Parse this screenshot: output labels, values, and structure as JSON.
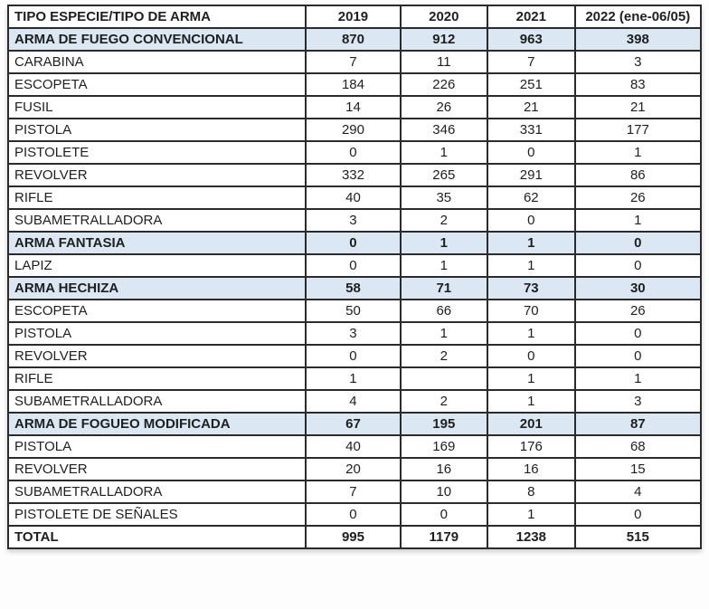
{
  "table": {
    "columns": [
      "TIPO ESPECIE/TIPO DE ARMA",
      "2019",
      "2020",
      "2021",
      "2022 (ene-06/05)"
    ],
    "rows": [
      {
        "type": "section",
        "label": "ARMA DE FUEGO CONVENCIONAL",
        "values": [
          "870",
          "912",
          "963",
          "398"
        ]
      },
      {
        "type": "item",
        "label": "CARABINA",
        "values": [
          "7",
          "11",
          "7",
          "3"
        ]
      },
      {
        "type": "item",
        "label": "ESCOPETA",
        "values": [
          "184",
          "226",
          "251",
          "83"
        ]
      },
      {
        "type": "item",
        "label": "FUSIL",
        "values": [
          "14",
          "26",
          "21",
          "21"
        ]
      },
      {
        "type": "item",
        "label": "PISTOLA",
        "values": [
          "290",
          "346",
          "331",
          "177"
        ]
      },
      {
        "type": "item",
        "label": "PISTOLETE",
        "values": [
          "0",
          "1",
          "0",
          "1"
        ]
      },
      {
        "type": "item",
        "label": "REVOLVER",
        "values": [
          "332",
          "265",
          "291",
          "86"
        ]
      },
      {
        "type": "item",
        "label": "RIFLE",
        "values": [
          "40",
          "35",
          "62",
          "26"
        ]
      },
      {
        "type": "item",
        "label": "SUBAMETRALLADORA",
        "values": [
          "3",
          "2",
          "0",
          "1"
        ]
      },
      {
        "type": "section",
        "label": "ARMA FANTASIA",
        "values": [
          "0",
          "1",
          "1",
          "0"
        ]
      },
      {
        "type": "item",
        "label": "LAPIZ",
        "values": [
          "0",
          "1",
          "1",
          "0"
        ]
      },
      {
        "type": "section",
        "label": "ARMA HECHIZA",
        "values": [
          "58",
          "71",
          "73",
          "30"
        ]
      },
      {
        "type": "item",
        "label": "ESCOPETA",
        "values": [
          "50",
          "66",
          "70",
          "26"
        ]
      },
      {
        "type": "item",
        "label": "PISTOLA",
        "values": [
          "3",
          "1",
          "1",
          "0"
        ]
      },
      {
        "type": "item",
        "label": "REVOLVER",
        "values": [
          "0",
          "2",
          "0",
          "0"
        ]
      },
      {
        "type": "item",
        "label": "RIFLE",
        "values": [
          "1",
          "",
          "1",
          "1"
        ]
      },
      {
        "type": "item",
        "label": "SUBAMETRALLADORA",
        "values": [
          "4",
          "2",
          "1",
          "3"
        ]
      },
      {
        "type": "section",
        "label": "ARMA DE FOGUEO MODIFICADA",
        "values": [
          "67",
          "195",
          "201",
          "87"
        ]
      },
      {
        "type": "item",
        "label": "PISTOLA",
        "values": [
          "40",
          "169",
          "176",
          "68"
        ]
      },
      {
        "type": "item",
        "label": "REVOLVER",
        "values": [
          "20",
          "16",
          "16",
          "15"
        ]
      },
      {
        "type": "item",
        "label": "SUBAMETRALLADORA",
        "values": [
          "7",
          "10",
          "8",
          "4"
        ]
      },
      {
        "type": "item",
        "label": "PISTOLETE DE SEÑALES",
        "values": [
          "0",
          "0",
          "1",
          "0"
        ]
      },
      {
        "type": "total",
        "label": "TOTAL",
        "values": [
          "995",
          "1179",
          "1238",
          "515"
        ]
      }
    ]
  },
  "colors": {
    "section_row_bg": "#dbe8f4",
    "border": "#2b2b2b",
    "text": "#1f1f1f"
  }
}
